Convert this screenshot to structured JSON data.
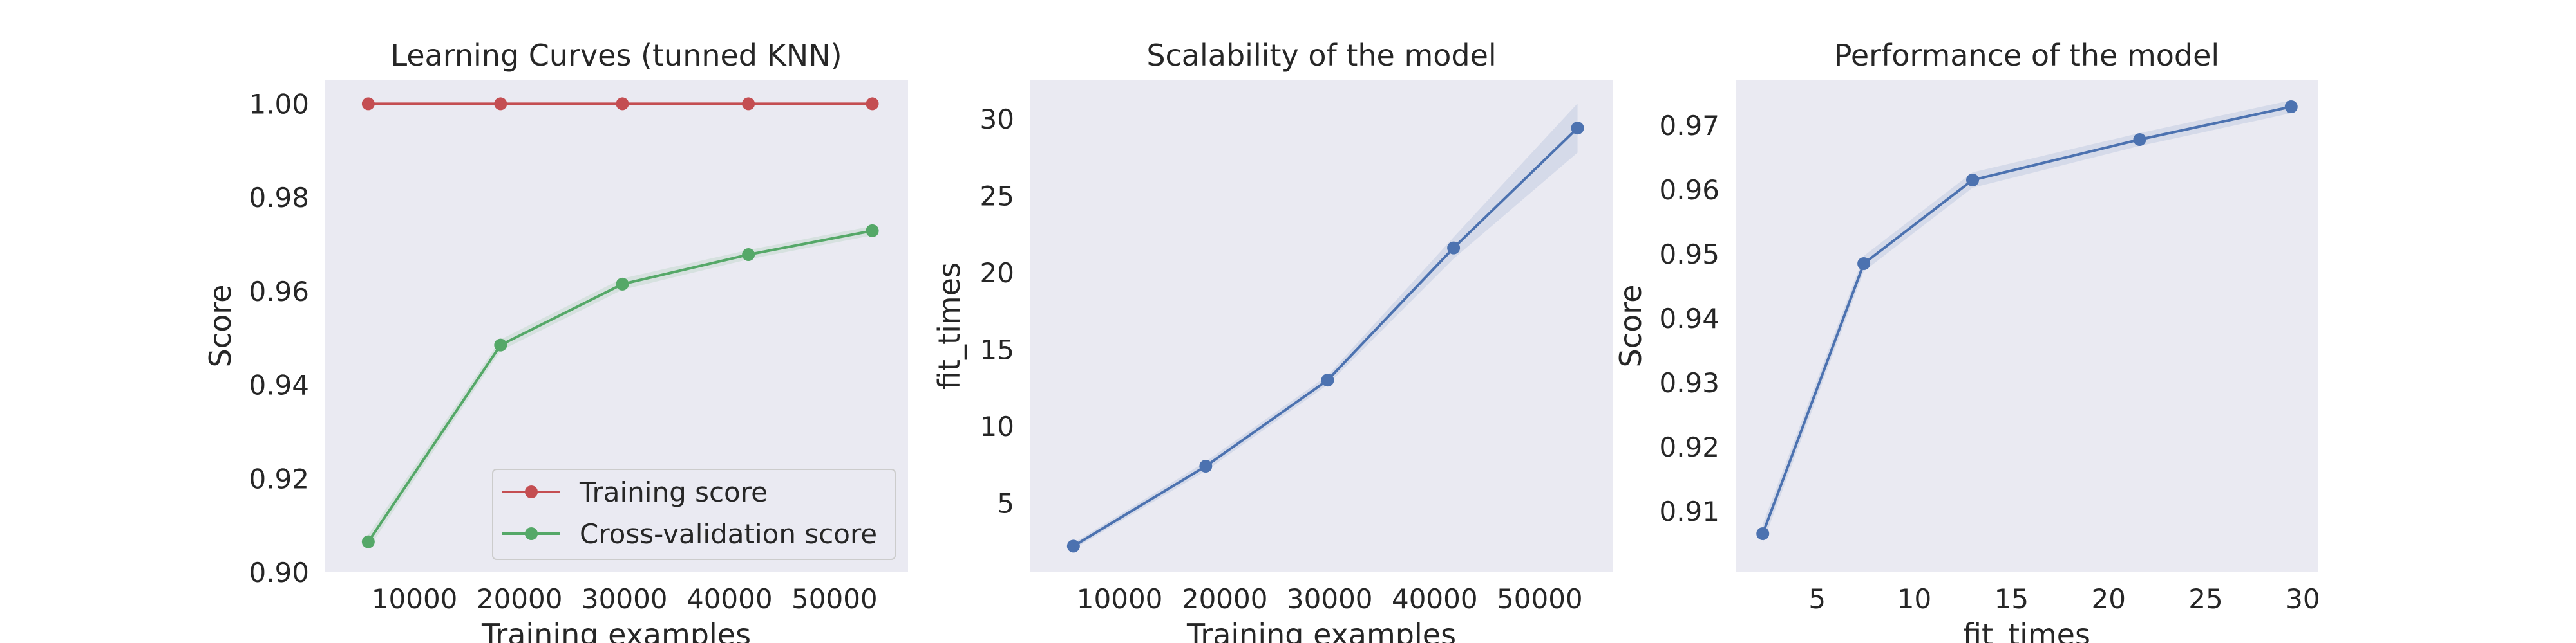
{
  "chart_data": [
    {
      "type": "line",
      "title": "Learning Curves (tunned KNN)",
      "xlabel": "Training examples",
      "ylabel": "Score",
      "xlim": [
        1500,
        57000
      ],
      "ylim": [
        0.9,
        1.005
      ],
      "xticks": [
        10000,
        20000,
        30000,
        40000,
        50000
      ],
      "yticks": [
        0.9,
        0.92,
        0.94,
        0.96,
        0.98,
        1.0
      ],
      "ytick_labels": [
        "0.90",
        "0.92",
        "0.94",
        "0.96",
        "0.98",
        "1.00"
      ],
      "grid": false,
      "legend_position": "lower right",
      "x": [
        5600,
        18200,
        29800,
        41800,
        53600
      ],
      "series": [
        {
          "name": "Training score",
          "color": "#c44e52",
          "values": [
            1.0,
            1.0,
            1.0,
            1.0,
            1.0
          ],
          "band": [
            0.0,
            0.0,
            0.0,
            0.0,
            0.0
          ]
        },
        {
          "name": "Cross-validation score",
          "color": "#55a868",
          "values": [
            0.9065,
            0.9485,
            0.9615,
            0.9678,
            0.9729
          ],
          "band": [
            0.0015,
            0.0012,
            0.0012,
            0.001,
            0.001
          ]
        }
      ]
    },
    {
      "type": "line",
      "title": "Scalability of the model",
      "xlabel": "Training examples",
      "ylabel": "fit_times",
      "xlim": [
        1500,
        57000
      ],
      "ylim": [
        0.5,
        32.5
      ],
      "xticks": [
        10000,
        20000,
        30000,
        40000,
        50000
      ],
      "yticks": [
        5,
        10,
        15,
        20,
        25,
        30
      ],
      "grid": false,
      "x": [
        5600,
        18200,
        29800,
        41800,
        53600
      ],
      "series": [
        {
          "color": "#4c72b0",
          "values": [
            2.2,
            7.4,
            13.0,
            21.6,
            29.4
          ],
          "band": [
            0.2,
            0.3,
            0.3,
            0.7,
            1.6
          ]
        }
      ]
    },
    {
      "type": "line",
      "title": "Performance of the model",
      "xlabel": "fit_times",
      "ylabel": "Score",
      "xlim": [
        0.8,
        30.8
      ],
      "ylim": [
        0.9005,
        0.977
      ],
      "xticks": [
        5,
        10,
        15,
        20,
        25,
        30
      ],
      "yticks": [
        0.91,
        0.92,
        0.93,
        0.94,
        0.95,
        0.96,
        0.97
      ],
      "grid": false,
      "x": [
        2.2,
        7.4,
        13.0,
        21.6,
        29.4
      ],
      "series": [
        {
          "color": "#4c72b0",
          "values": [
            0.9065,
            0.9485,
            0.9615,
            0.9678,
            0.9729
          ],
          "band": [
            0.0015,
            0.0012,
            0.0012,
            0.001,
            0.001
          ]
        }
      ]
    }
  ]
}
